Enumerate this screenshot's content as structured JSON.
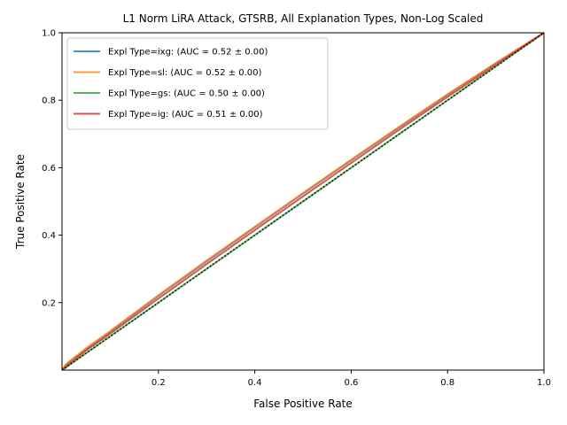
{
  "chart_data": {
    "type": "line",
    "title": "L1 Norm LiRA Attack, GTSRB, All Explanation Types, Non-Log Scaled",
    "xlabel": "False Positive Rate",
    "ylabel": "True Positive Rate",
    "xlim": [
      0.0,
      1.0
    ],
    "ylim": [
      0.0,
      1.0
    ],
    "xticks": [
      {
        "value": 0.2,
        "label": "0.2"
      },
      {
        "value": 0.4,
        "label": "0.4"
      },
      {
        "value": 0.6,
        "label": "0.6"
      },
      {
        "value": 0.8,
        "label": "0.8"
      },
      {
        "value": 1.0,
        "label": "1.0"
      }
    ],
    "yticks": [
      {
        "value": 0.2,
        "label": "0.2"
      },
      {
        "value": 0.4,
        "label": "0.4"
      },
      {
        "value": 0.6,
        "label": "0.6"
      },
      {
        "value": 0.8,
        "label": "0.8"
      },
      {
        "value": 1.0,
        "label": "1.0"
      }
    ],
    "grid": false,
    "legend_position": "top-left",
    "series": [
      {
        "name": "Expl Type=ixg: (AUC = 0.52 ± 0.00)",
        "color": "#1f77b4",
        "x": [
          0.0,
          0.01,
          0.05,
          0.1,
          0.2,
          0.3,
          0.4,
          0.5,
          0.6,
          0.7,
          0.8,
          0.9,
          1.0
        ],
        "y": [
          0.0,
          0.018,
          0.062,
          0.113,
          0.22,
          0.322,
          0.423,
          0.523,
          0.622,
          0.72,
          0.816,
          0.91,
          1.0
        ]
      },
      {
        "name": "Expl Type=sl: (AUC = 0.52 ± 0.00)",
        "color": "#ff7f0e",
        "x": [
          0.0,
          0.01,
          0.05,
          0.1,
          0.2,
          0.3,
          0.4,
          0.5,
          0.6,
          0.7,
          0.8,
          0.9,
          1.0
        ],
        "y": [
          0.0,
          0.02,
          0.065,
          0.116,
          0.222,
          0.325,
          0.425,
          0.525,
          0.624,
          0.722,
          0.818,
          0.91,
          1.0
        ]
      },
      {
        "name": "Expl Type=gs: (AUC = 0.50 ± 0.00)",
        "color": "#2ca02c",
        "x": [
          0.0,
          0.05,
          0.1,
          0.2,
          0.3,
          0.4,
          0.5,
          0.6,
          0.7,
          0.8,
          0.9,
          1.0
        ],
        "y": [
          0.0,
          0.05,
          0.1,
          0.2,
          0.3,
          0.4,
          0.5,
          0.6,
          0.7,
          0.8,
          0.9,
          1.0
        ]
      },
      {
        "name": "Expl Type=ig: (AUC = 0.51 ± 0.00)",
        "color": "#d62728",
        "x": [
          0.0,
          0.01,
          0.05,
          0.1,
          0.2,
          0.3,
          0.4,
          0.5,
          0.6,
          0.7,
          0.8,
          0.9,
          1.0
        ],
        "y": [
          0.0,
          0.012,
          0.058,
          0.108,
          0.212,
          0.314,
          0.415,
          0.515,
          0.614,
          0.713,
          0.81,
          0.905,
          1.0
        ]
      }
    ],
    "reference_line": {
      "x": [
        0.0,
        1.0
      ],
      "y": [
        0.0,
        1.0
      ],
      "color": "#000000",
      "style": "dotted"
    }
  }
}
